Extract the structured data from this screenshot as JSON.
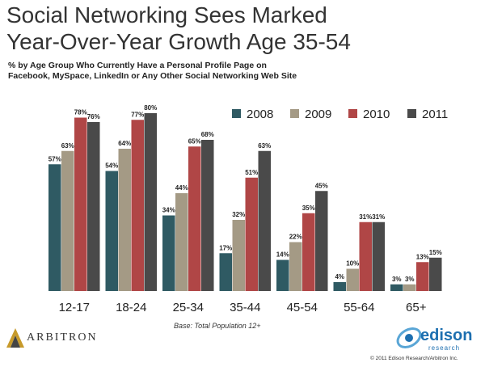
{
  "header": {
    "title_line1": "Social Networking Sees Marked",
    "title_line2": "Year-Over-Year Growth Age 35-54",
    "subtitle_line1": "% by Age Group Who Currently Have a Personal Profile Page on",
    "subtitle_line2": "Facebook, MySpace, LinkedIn or Any Other Social Networking Web Site"
  },
  "chart_data": {
    "type": "bar",
    "categories": [
      "12-17",
      "18-24",
      "25-34",
      "35-44",
      "45-54",
      "55-64",
      "65+"
    ],
    "series": [
      {
        "name": "2008",
        "color": "#2f5a63",
        "values": [
          57,
          54,
          34,
          17,
          14,
          4,
          3
        ]
      },
      {
        "name": "2009",
        "color": "#a49a85",
        "values": [
          63,
          64,
          44,
          32,
          22,
          10,
          3
        ]
      },
      {
        "name": "2010",
        "color": "#b04646",
        "values": [
          78,
          77,
          65,
          51,
          35,
          31,
          13
        ]
      },
      {
        "name": "2011",
        "color": "#4a4a4a",
        "values": [
          76,
          80,
          68,
          63,
          45,
          31,
          15
        ]
      }
    ],
    "value_suffix": "%",
    "ylim": [
      0,
      80
    ],
    "grid": false,
    "legend_position": "top-right"
  },
  "footer": {
    "base_note": "Base: Total Population 12+",
    "arbitron_logo_text": "ARBITRON",
    "edison_logo_text": "edison",
    "edison_logo_sub": "research",
    "copyright": "© 2011 Edison Research/Arbitron Inc."
  }
}
